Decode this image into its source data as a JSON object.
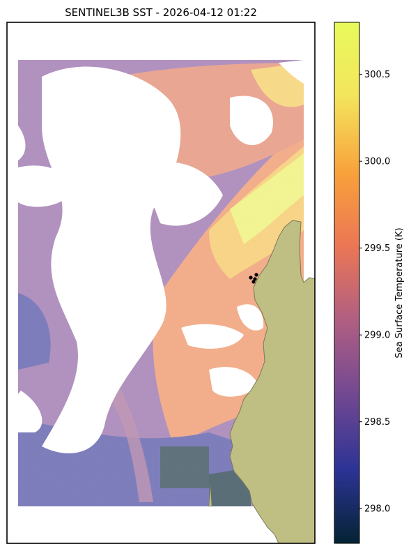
{
  "chart_data": {
    "type": "heatmap",
    "title": "SENTINEL3B SST - 2026-04-12 01:22",
    "colorbar": {
      "label": "Sea Surface Temperature (K)",
      "vmin": 297.8,
      "vmax": 300.8,
      "ticks": [
        298.0,
        298.5,
        299.0,
        299.5,
        300.0,
        300.5
      ],
      "tick_labels": [
        "298.0",
        "298.5",
        "299.0",
        "299.5",
        "300.0",
        "300.5"
      ],
      "colormap": "thermal",
      "stops": [
        "#042333",
        "#2c3395",
        "#744992",
        "#b15f82",
        "#eb7655",
        "#f8a13b",
        "#f3e55d",
        "#e8fa5b"
      ]
    },
    "map": {
      "land_color": "#bfbf84",
      "coast_color": "#7a7a5a",
      "missing_data": "cloud (white)"
    },
    "markers": {
      "count": 4,
      "color": "#000000",
      "shape": "circle"
    },
    "axes_ticks_visible": false,
    "grid": false
  }
}
